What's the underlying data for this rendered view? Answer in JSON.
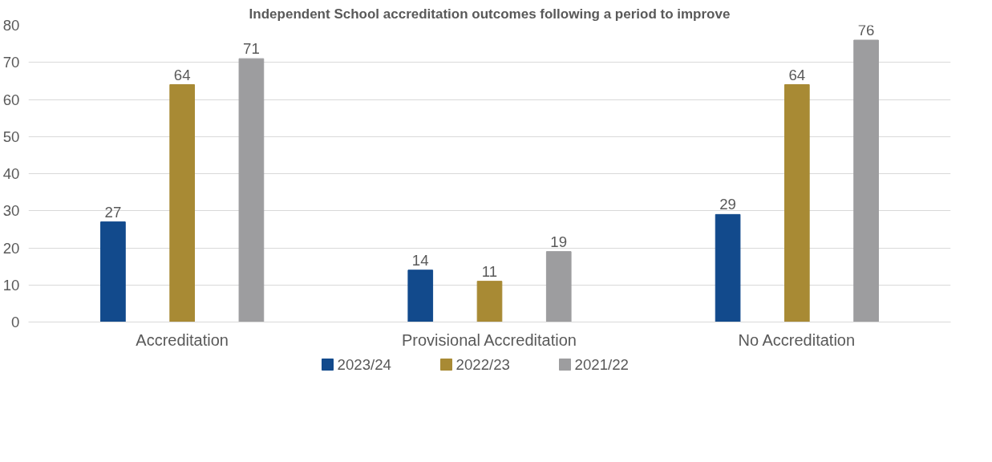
{
  "chart_data": {
    "type": "bar",
    "title": "Independent School accreditation outcomes following a period to improve",
    "categories": [
      "Accreditation",
      "Provisional Accreditation",
      "No Accreditation"
    ],
    "series": [
      {
        "name": "2023/24",
        "color": "#124a8c",
        "values": [
          27,
          14,
          29
        ]
      },
      {
        "name": "2022/23",
        "color": "#a88a34",
        "values": [
          64,
          11,
          64
        ]
      },
      {
        "name": "2021/22",
        "color": "#9d9d9f",
        "values": [
          71,
          19,
          76
        ]
      }
    ],
    "ylim": [
      0,
      80
    ],
    "yticks": [
      0,
      10,
      20,
      30,
      40,
      50,
      60,
      70,
      80
    ],
    "grid": "y",
    "legend": "bottom",
    "data_labels": true
  }
}
